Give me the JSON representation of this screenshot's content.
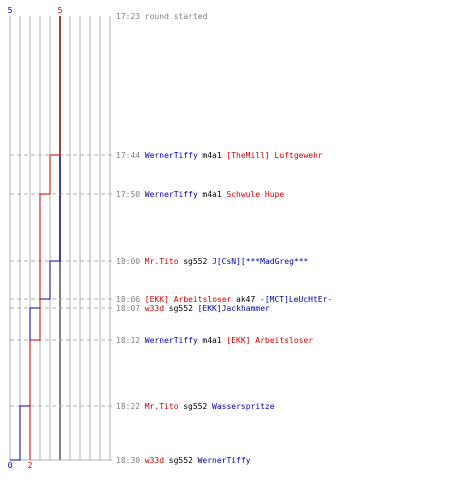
{
  "colors": {
    "team_a": "#0000aa",
    "team_b": "#cc0000",
    "grid": "#b0b0b0",
    "zero_line": "#808080",
    "time_text": "#808080",
    "weapon_text": "#000000"
  },
  "chart_data": {
    "type": "line",
    "x_axis": {
      "min": 0,
      "max": 5,
      "tick_labels": [
        {
          "value": 0,
          "text": "0",
          "color": "team_a"
        },
        {
          "value": 2,
          "text": "2",
          "color": "team_b"
        }
      ],
      "top_labels": [
        {
          "value": 0,
          "text": "5",
          "color": "team_a"
        },
        {
          "value": 5,
          "text": "5",
          "color": "team_b"
        }
      ]
    },
    "y_axis": {
      "direction": "time-down",
      "start": "17:23",
      "end": "18:30"
    },
    "grid": true,
    "series": [
      {
        "color": "team_a",
        "points": [
          [
            "17:23",
            5
          ],
          [
            "18:00",
            5
          ],
          [
            "18:00",
            4
          ],
          [
            "18:06",
            4
          ],
          [
            "18:06",
            3
          ],
          [
            "18:07",
            3
          ],
          [
            "18:07",
            2
          ],
          [
            "18:22",
            2
          ],
          [
            "18:22",
            1
          ],
          [
            "18:30",
            1
          ],
          [
            "18:30",
            0
          ]
        ]
      },
      {
        "color": "team_b",
        "points": [
          [
            "17:23",
            5
          ],
          [
            "17:44",
            5
          ],
          [
            "17:44",
            4
          ],
          [
            "17:50",
            4
          ],
          [
            "17:50",
            3
          ],
          [
            "18:12",
            3
          ],
          [
            "18:12",
            2
          ],
          [
            "18:30",
            2
          ]
        ]
      }
    ],
    "events": [
      {
        "time": "17:23",
        "parts": [
          {
            "text": "round started",
            "color": "time_text"
          }
        ]
      },
      {
        "time": "17:44",
        "parts": [
          {
            "text": "WernerTiffy",
            "color": "team_a"
          },
          {
            "text": "m4a1",
            "color": "weapon_text"
          },
          {
            "text": "[TheMill] Luftgewehr",
            "color": "team_b"
          }
        ]
      },
      {
        "time": "17:50",
        "parts": [
          {
            "text": "WernerTiffy",
            "color": "team_a"
          },
          {
            "text": "m4a1",
            "color": "weapon_text"
          },
          {
            "text": "Schwule Hupe",
            "color": "team_b"
          }
        ]
      },
      {
        "time": "18:00",
        "parts": [
          {
            "text": "Mr.Tito",
            "color": "team_b"
          },
          {
            "text": "sg552",
            "color": "weapon_text"
          },
          {
            "text": "J[CsN][***MadGreg***",
            "color": "team_a"
          }
        ]
      },
      {
        "time": "18:06",
        "parts": [
          {
            "text": "[EKK] Arbeitsloser",
            "color": "team_b"
          },
          {
            "text": "ak47",
            "color": "weapon_text"
          },
          {
            "text": "-[MCT]LeUcHtEr-",
            "color": "team_a"
          }
        ]
      },
      {
        "time": "18:07",
        "parts": [
          {
            "text": "w33d",
            "color": "team_b"
          },
          {
            "text": "sg552",
            "color": "weapon_text"
          },
          {
            "text": "[EKK]Jackhammer",
            "color": "team_a"
          }
        ]
      },
      {
        "time": "18:12",
        "parts": [
          {
            "text": "WernerTiffy",
            "color": "team_a"
          },
          {
            "text": "m4a1",
            "color": "weapon_text"
          },
          {
            "text": "[EKK] Arbeitsloser",
            "color": "team_b"
          }
        ]
      },
      {
        "time": "18:22",
        "parts": [
          {
            "text": "Mr.Tito",
            "color": "team_b"
          },
          {
            "text": "sg552",
            "color": "weapon_text"
          },
          {
            "text": "Wasserspritze",
            "color": "team_a"
          }
        ]
      },
      {
        "time": "18:30",
        "parts": [
          {
            "text": "w33d",
            "color": "team_b"
          },
          {
            "text": "sg552",
            "color": "weapon_text"
          },
          {
            "text": "WernerTiffy",
            "color": "team_a"
          }
        ]
      }
    ]
  }
}
